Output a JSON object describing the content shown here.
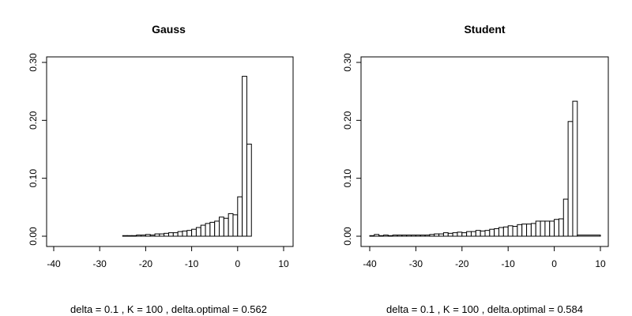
{
  "chart_data": [
    {
      "type": "bar",
      "title": "Gauss",
      "xlabel": "delta = 0.1 , K = 100 , delta.optimal = 0.562",
      "ylabel": "",
      "xlim": [
        -40,
        10
      ],
      "ylim": [
        0,
        0.3
      ],
      "xticks": [
        -40,
        -30,
        -20,
        -10,
        0,
        10
      ],
      "yticks": [
        0.0,
        0.1,
        0.2,
        0.3
      ],
      "xtick_labels": [
        "-40",
        "-30",
        "-20",
        "-10",
        "0",
        "10"
      ],
      "ytick_labels": [
        "0.00",
        "0.10",
        "0.20",
        "0.30"
      ],
      "bin_width": 1,
      "bins": [
        {
          "x0": -40,
          "x1": -25,
          "value": 0.0
        },
        {
          "x0": -25,
          "x1": -24,
          "value": 0.001
        },
        {
          "x0": -24,
          "x1": -23,
          "value": 0.001
        },
        {
          "x0": -23,
          "x1": -22,
          "value": 0.001
        },
        {
          "x0": -22,
          "x1": -21,
          "value": 0.002
        },
        {
          "x0": -21,
          "x1": -20,
          "value": 0.002
        },
        {
          "x0": -20,
          "x1": -19,
          "value": 0.003
        },
        {
          "x0": -19,
          "x1": -18,
          "value": 0.002
        },
        {
          "x0": -18,
          "x1": -17,
          "value": 0.004
        },
        {
          "x0": -17,
          "x1": -16,
          "value": 0.004
        },
        {
          "x0": -16,
          "x1": -15,
          "value": 0.005
        },
        {
          "x0": -15,
          "x1": -14,
          "value": 0.006
        },
        {
          "x0": -14,
          "x1": -13,
          "value": 0.006
        },
        {
          "x0": -13,
          "x1": -12,
          "value": 0.008
        },
        {
          "x0": -12,
          "x1": -11,
          "value": 0.009
        },
        {
          "x0": -11,
          "x1": -10,
          "value": 0.01
        },
        {
          "x0": -10,
          "x1": -9,
          "value": 0.012
        },
        {
          "x0": -9,
          "x1": -8,
          "value": 0.015
        },
        {
          "x0": -8,
          "x1": -7,
          "value": 0.019
        },
        {
          "x0": -7,
          "x1": -6,
          "value": 0.022
        },
        {
          "x0": -6,
          "x1": -5,
          "value": 0.024
        },
        {
          "x0": -5,
          "x1": -4,
          "value": 0.026
        },
        {
          "x0": -4,
          "x1": -3,
          "value": 0.033
        },
        {
          "x0": -3,
          "x1": -2,
          "value": 0.031
        },
        {
          "x0": -2,
          "x1": -1,
          "value": 0.039
        },
        {
          "x0": -1,
          "x1": 0,
          "value": 0.037
        },
        {
          "x0": 0,
          "x1": 1,
          "value": 0.068
        },
        {
          "x0": 1,
          "x1": 2,
          "value": 0.276
        },
        {
          "x0": 2,
          "x1": 3,
          "value": 0.159
        },
        {
          "x0": 3,
          "x1": 10,
          "value": 0.0
        }
      ]
    },
    {
      "type": "bar",
      "title": "Student",
      "xlabel": "delta = 0.1 , K = 100 , delta.optimal = 0.584",
      "ylabel": "",
      "xlim": [
        -40,
        10
      ],
      "ylim": [
        0,
        0.3
      ],
      "xticks": [
        -40,
        -30,
        -20,
        -10,
        0,
        10
      ],
      "yticks": [
        0.0,
        0.1,
        0.2,
        0.3
      ],
      "xtick_labels": [
        "-40",
        "-30",
        "-20",
        "-10",
        "0",
        "10"
      ],
      "ytick_labels": [
        "0.00",
        "0.10",
        "0.20",
        "0.30"
      ],
      "bin_width": 1,
      "bins": [
        {
          "x0": -40,
          "x1": -39,
          "value": 0.001
        },
        {
          "x0": -39,
          "x1": -38,
          "value": 0.003
        },
        {
          "x0": -38,
          "x1": -37,
          "value": 0.001
        },
        {
          "x0": -37,
          "x1": -36,
          "value": 0.002
        },
        {
          "x0": -36,
          "x1": -35,
          "value": 0.001
        },
        {
          "x0": -35,
          "x1": -34,
          "value": 0.002
        },
        {
          "x0": -34,
          "x1": -33,
          "value": 0.002
        },
        {
          "x0": -33,
          "x1": -32,
          "value": 0.002
        },
        {
          "x0": -32,
          "x1": -31,
          "value": 0.002
        },
        {
          "x0": -31,
          "x1": -30,
          "value": 0.002
        },
        {
          "x0": -30,
          "x1": -29,
          "value": 0.002
        },
        {
          "x0": -29,
          "x1": -28,
          "value": 0.002
        },
        {
          "x0": -28,
          "x1": -27,
          "value": 0.002
        },
        {
          "x0": -27,
          "x1": -26,
          "value": 0.003
        },
        {
          "x0": -26,
          "x1": -25,
          "value": 0.004
        },
        {
          "x0": -25,
          "x1": -24,
          "value": 0.004
        },
        {
          "x0": -24,
          "x1": -23,
          "value": 0.006
        },
        {
          "x0": -23,
          "x1": -22,
          "value": 0.005
        },
        {
          "x0": -22,
          "x1": -21,
          "value": 0.006
        },
        {
          "x0": -21,
          "x1": -20,
          "value": 0.007
        },
        {
          "x0": -20,
          "x1": -19,
          "value": 0.006
        },
        {
          "x0": -19,
          "x1": -18,
          "value": 0.008
        },
        {
          "x0": -18,
          "x1": -17,
          "value": 0.008
        },
        {
          "x0": -17,
          "x1": -16,
          "value": 0.01
        },
        {
          "x0": -16,
          "x1": -15,
          "value": 0.009
        },
        {
          "x0": -15,
          "x1": -14,
          "value": 0.01
        },
        {
          "x0": -14,
          "x1": -13,
          "value": 0.012
        },
        {
          "x0": -13,
          "x1": -12,
          "value": 0.013
        },
        {
          "x0": -12,
          "x1": -11,
          "value": 0.015
        },
        {
          "x0": -11,
          "x1": -10,
          "value": 0.016
        },
        {
          "x0": -10,
          "x1": -9,
          "value": 0.018
        },
        {
          "x0": -9,
          "x1": -8,
          "value": 0.017
        },
        {
          "x0": -8,
          "x1": -7,
          "value": 0.02
        },
        {
          "x0": -7,
          "x1": -6,
          "value": 0.021
        },
        {
          "x0": -6,
          "x1": -5,
          "value": 0.021
        },
        {
          "x0": -5,
          "x1": -4,
          "value": 0.022
        },
        {
          "x0": -4,
          "x1": -3,
          "value": 0.026
        },
        {
          "x0": -3,
          "x1": -2,
          "value": 0.026
        },
        {
          "x0": -2,
          "x1": -1,
          "value": 0.026
        },
        {
          "x0": -1,
          "x1": 0,
          "value": 0.026
        },
        {
          "x0": 0,
          "x1": 1,
          "value": 0.029
        },
        {
          "x0": 1,
          "x1": 2,
          "value": 0.03
        },
        {
          "x0": 2,
          "x1": 3,
          "value": 0.064
        },
        {
          "x0": 3,
          "x1": 4,
          "value": 0.198
        },
        {
          "x0": 4,
          "x1": 5,
          "value": 0.233
        },
        {
          "x0": 5,
          "x1": 10,
          "value": 0.002
        }
      ]
    }
  ]
}
